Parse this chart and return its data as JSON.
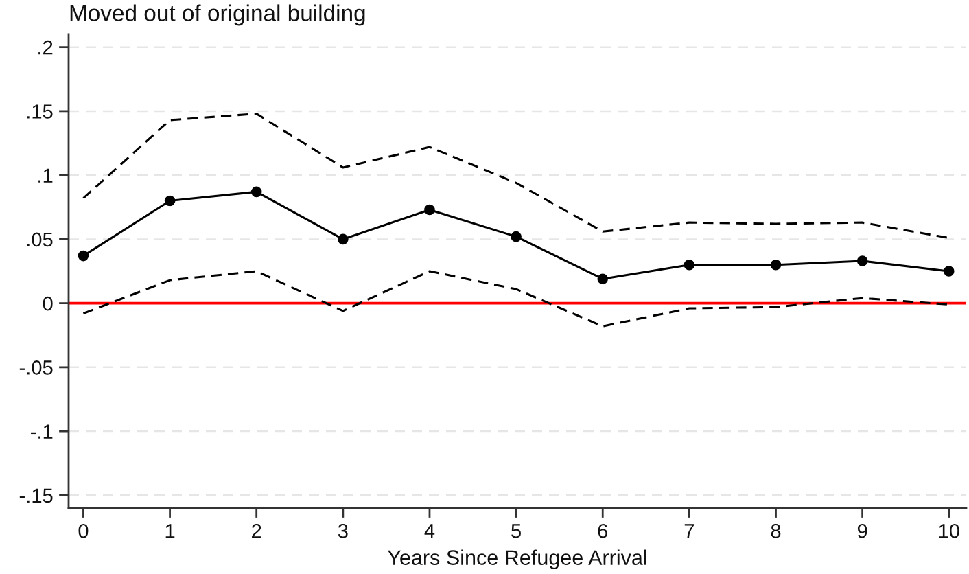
{
  "chart_data": {
    "type": "line",
    "title": "Moved out of original building",
    "xlabel": "Years Since Refugee Arrival",
    "x": [
      0,
      1,
      2,
      3,
      4,
      5,
      6,
      7,
      8,
      9,
      10
    ],
    "series": [
      {
        "color": "#000000",
        "line_style": "dashed",
        "marker": "none",
        "values": [
          0.082,
          0.143,
          0.148,
          0.106,
          0.122,
          0.094,
          0.056,
          0.063,
          0.062,
          0.063,
          0.051
        ]
      },
      {
        "color": "#000000",
        "line_style": "solid",
        "marker": "circle",
        "values": [
          0.037,
          0.08,
          0.087,
          0.05,
          0.073,
          0.052,
          0.019,
          0.03,
          0.03,
          0.033,
          0.025
        ]
      },
      {
        "color": "#000000",
        "line_style": "dashed",
        "marker": "none",
        "values": [
          -0.008,
          0.018,
          0.025,
          -0.006,
          0.025,
          0.011,
          -0.018,
          -0.004,
          -0.003,
          0.004,
          -0.001
        ]
      }
    ],
    "xlim": [
      -0.17,
      10.2
    ],
    "ylim": [
      -0.16,
      0.21
    ],
    "xticks": [
      0,
      1,
      2,
      3,
      4,
      5,
      6,
      7,
      8,
      9,
      10
    ],
    "yticks": [
      {
        "value": -0.15,
        "label": "-.15"
      },
      {
        "value": -0.1,
        "label": "-.1"
      },
      {
        "value": -0.05,
        "label": "-.05"
      },
      0,
      {
        "value": 0.05,
        "label": ".05"
      },
      {
        "value": 0.1,
        "label": ".1"
      },
      {
        "value": 0.15,
        "label": ".15"
      },
      {
        "value": 0.2,
        "label": ".2"
      }
    ],
    "grid": "y",
    "ref_lines": [
      {
        "axis": "y",
        "value": 0,
        "color": "#ff0000"
      }
    ]
  }
}
